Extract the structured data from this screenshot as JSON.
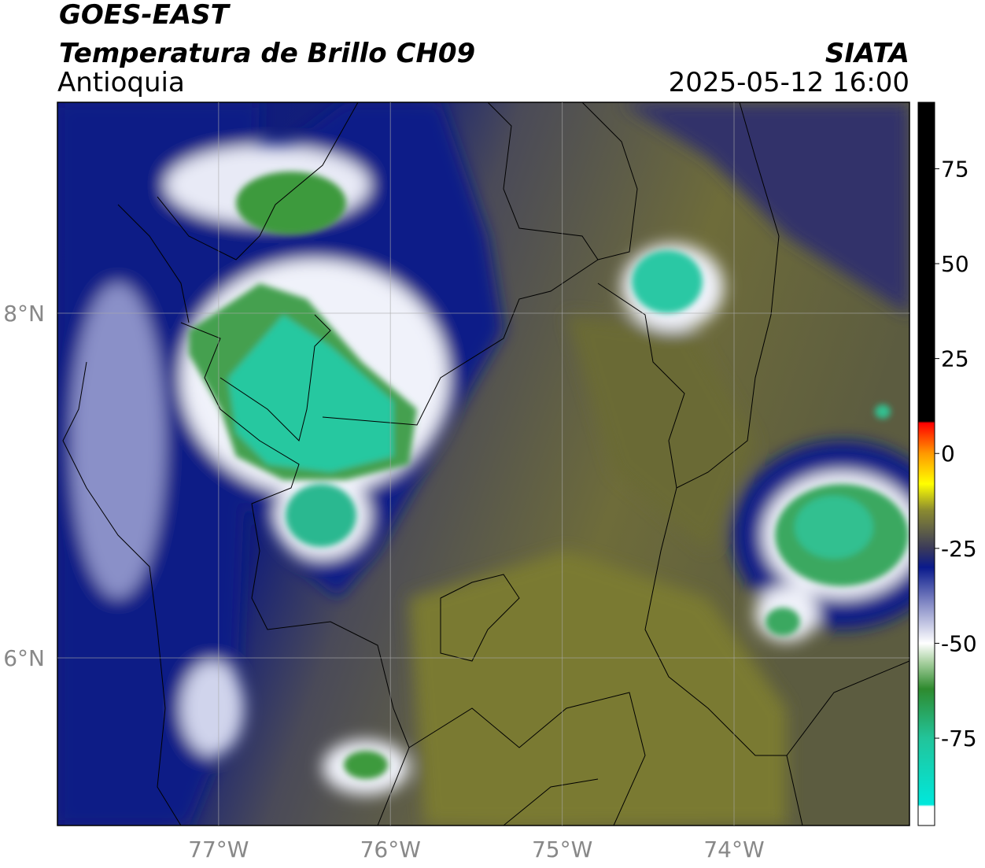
{
  "chart_data": {
    "type": "map",
    "title": "GOES-EAST",
    "subtitle": "Temperatura de Brillo CH09",
    "region": "Antioquia",
    "source": "SIATA",
    "datetime": "2025-05-12 16:00",
    "xlim": [
      -77.938,
      -72.979
    ],
    "ylim": [
      5.027,
      9.224
    ],
    "xticks": [
      {
        "value": -77,
        "label": "77°W"
      },
      {
        "value": -76,
        "label": "76°W"
      },
      {
        "value": -75,
        "label": "75°W"
      },
      {
        "value": -74,
        "label": "74°W"
      }
    ],
    "yticks": [
      {
        "value": 6,
        "label": "6°N"
      },
      {
        "value": 8,
        "label": "8°N"
      }
    ],
    "grid": true,
    "colorbar": {
      "clim": [
        -98,
        92.5
      ],
      "ticks": [
        75,
        50,
        25,
        0,
        -25,
        -50,
        -75
      ],
      "colormap": [
        {
          "value": -98,
          "color": "#ffffff"
        },
        {
          "value": -93,
          "color": "#ffffff"
        },
        {
          "value": -92.5,
          "color": "#00e8dc"
        },
        {
          "value": -75,
          "color": "#22c49a"
        },
        {
          "value": -62,
          "color": "#2e8a2e"
        },
        {
          "value": -55,
          "color": "#a8d0a0"
        },
        {
          "value": -50,
          "color": "#ffffff"
        },
        {
          "value": -40,
          "color": "#8a90c8"
        },
        {
          "value": -30,
          "color": "#0a1a8c"
        },
        {
          "value": -25,
          "color": "#3a3a5a"
        },
        {
          "value": -15,
          "color": "#8a8a30"
        },
        {
          "value": -8,
          "color": "#ffff00"
        },
        {
          "value": 0,
          "color": "#ff9900"
        },
        {
          "value": 8,
          "color": "#ff0000"
        },
        {
          "value": 8.5,
          "color": "#000000"
        },
        {
          "value": 92.5,
          "color": "#000000"
        }
      ]
    }
  }
}
